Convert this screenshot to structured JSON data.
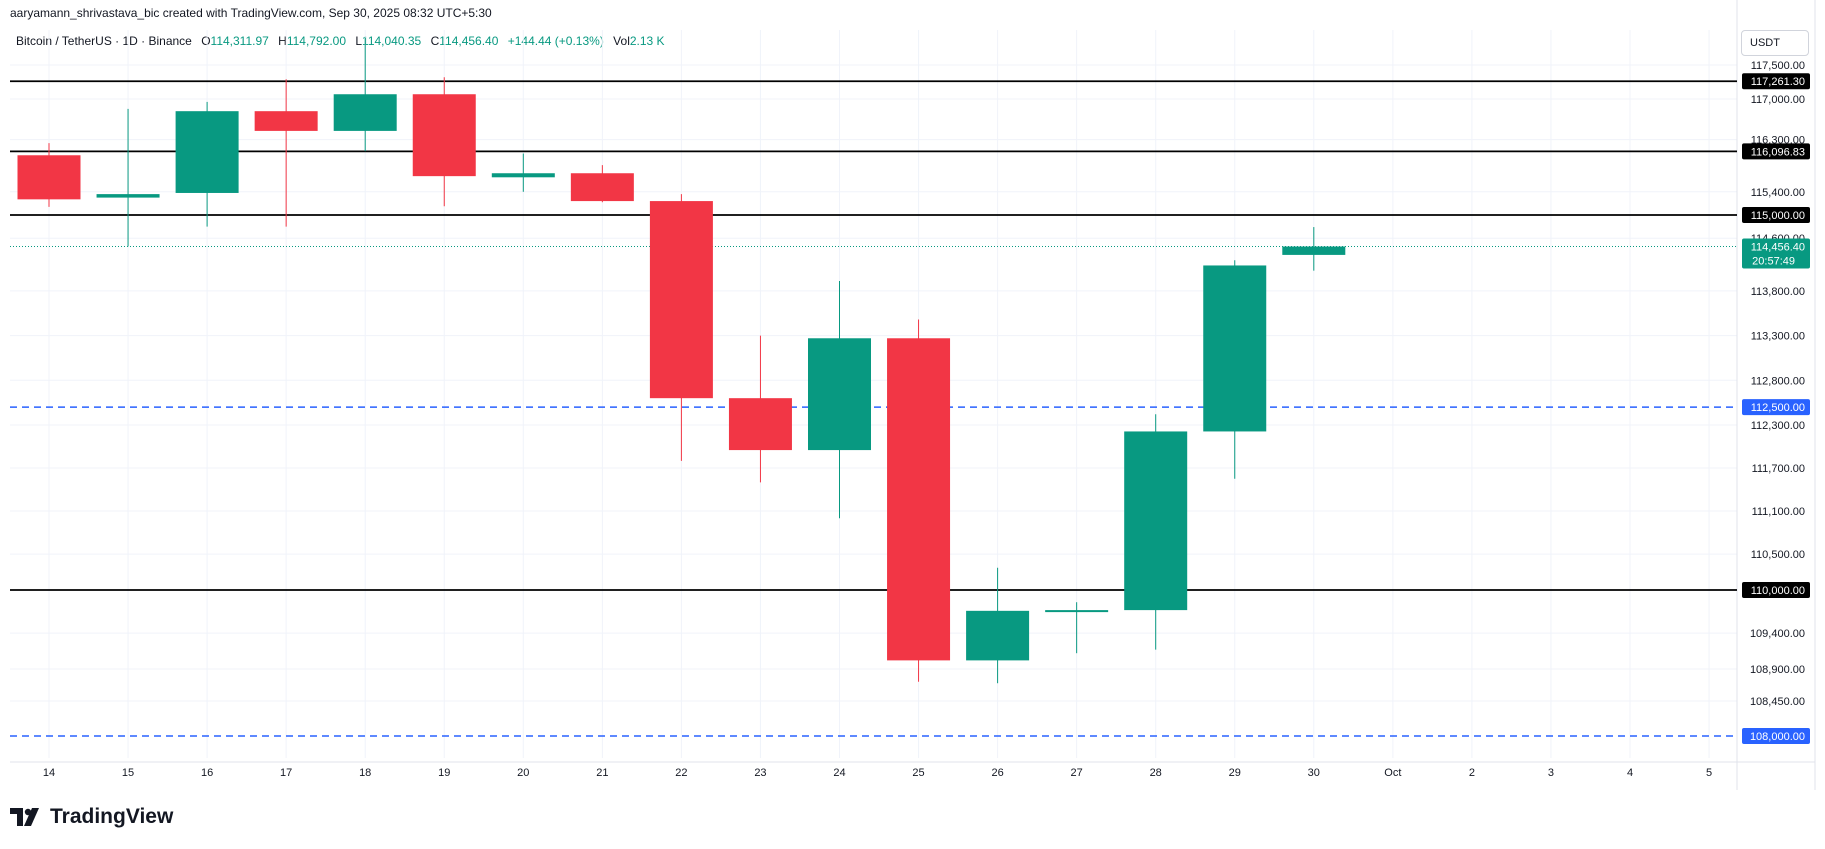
{
  "header": {
    "credit": "aaryamann_shrivastava_bic created with TradingView.com, Sep 30, 2025 08:32 UTC+5:30"
  },
  "legend": {
    "symbol": "Bitcoin / TetherUS · 1D · Binance",
    "open_label": "O",
    "open": "114,311.97",
    "high_label": "H",
    "high": "114,792.00",
    "low_label": "L",
    "low": "114,040.35",
    "close_label": "C",
    "close": "114,456.40",
    "change": "+144.44 (+0.13%)",
    "vol_label": "Vol",
    "vol": "2.13 K"
  },
  "price_axis": {
    "unit": "USDT"
  },
  "brand": {
    "name": "TradingView"
  },
  "colors": {
    "up": "#089981",
    "down": "#f23645",
    "level_line": "#000000",
    "dashed_line": "#2962ff",
    "grid": "#f0f3fa"
  },
  "chart_data": {
    "type": "candlestick",
    "y_scale": [
      {
        "value": 117500,
        "y": 65
      },
      {
        "value": 117000,
        "y": 99
      },
      {
        "value": 114000,
        "y": 273
      },
      {
        "value": 112300,
        "y": 425
      },
      {
        "value": 111700,
        "y": 468
      },
      {
        "value": 110000,
        "y": 590
      },
      {
        "value": 108900,
        "y": 669
      },
      {
        "value": 108450,
        "y": 701
      },
      {
        "value": 108000,
        "y": 736
      }
    ],
    "x_ticks": [
      "14",
      "15",
      "16",
      "17",
      "18",
      "19",
      "20",
      "21",
      "22",
      "23",
      "24",
      "25",
      "26",
      "27",
      "28",
      "29",
      "30",
      "Oct",
      "2",
      "3",
      "4",
      "5"
    ],
    "y_ticks": [
      {
        "value": 117500,
        "label": "117,500.00"
      },
      {
        "value": 117000,
        "label": "117,000.00"
      },
      {
        "value": 116300,
        "label": "116,300.00"
      },
      {
        "value": 115400,
        "label": "115,400.00"
      },
      {
        "value": 114600,
        "label": "114,600.00"
      },
      {
        "value": 113800,
        "label": "113,800.00"
      },
      {
        "value": 113300,
        "label": "113,300.00"
      },
      {
        "value": 112800,
        "label": "112,800.00"
      },
      {
        "value": 112300,
        "label": "112,300.00"
      },
      {
        "value": 111700,
        "label": "111,700.00"
      },
      {
        "value": 111100,
        "label": "111,100.00"
      },
      {
        "value": 110500,
        "label": "110,500.00"
      },
      {
        "value": 109400,
        "label": "109,400.00"
      },
      {
        "value": 108900,
        "label": "108,900.00"
      },
      {
        "value": 108450,
        "label": "108,450.00"
      }
    ],
    "candles": [
      {
        "date": "14",
        "open": 116030,
        "high": 116240,
        "low": 115140,
        "close": 115270
      },
      {
        "date": "15",
        "open": 115300,
        "high": 116830,
        "low": 114460,
        "close": 115360
      },
      {
        "date": "16",
        "open": 115380,
        "high": 116950,
        "low": 114800,
        "close": 116790
      },
      {
        "date": "17",
        "open": 116790,
        "high": 117290,
        "low": 114800,
        "close": 116450
      },
      {
        "date": "18",
        "open": 116450,
        "high": 117900,
        "low": 116100,
        "close": 117070
      },
      {
        "date": "19",
        "open": 117070,
        "high": 117320,
        "low": 115150,
        "close": 115670
      },
      {
        "date": "20",
        "open": 115650,
        "high": 116060,
        "low": 115400,
        "close": 115720
      },
      {
        "date": "21",
        "open": 115720,
        "high": 115860,
        "low": 115220,
        "close": 115240
      },
      {
        "date": "22",
        "open": 115240,
        "high": 115360,
        "low": 111800,
        "close": 112600
      },
      {
        "date": "23",
        "open": 112600,
        "high": 113300,
        "low": 111500,
        "close": 111950
      },
      {
        "date": "24",
        "open": 111950,
        "high": 113910,
        "low": 111000,
        "close": 113270
      },
      {
        "date": "25",
        "open": 113270,
        "high": 113480,
        "low": 108720,
        "close": 109020
      },
      {
        "date": "26",
        "open": 109020,
        "high": 110310,
        "low": 108700,
        "close": 109710
      },
      {
        "date": "27",
        "open": 109710,
        "high": 109830,
        "low": 109120,
        "close": 109720
      },
      {
        "date": "28",
        "open": 109720,
        "high": 112420,
        "low": 109170,
        "close": 112210
      },
      {
        "date": "29",
        "open": 112210,
        "high": 114220,
        "low": 111550,
        "close": 114130
      },
      {
        "date": "30",
        "open": 114311.97,
        "high": 114792,
        "low": 114040.35,
        "close": 114456.4
      }
    ],
    "levels": [
      {
        "value": 117261.3,
        "label": "117,261.30",
        "style": "solid"
      },
      {
        "value": 116096.83,
        "label": "116,096.83",
        "style": "solid"
      },
      {
        "value": 115000,
        "label": "115,000.00",
        "style": "solid"
      },
      {
        "value": 112500,
        "label": "112,500.00",
        "style": "dashed"
      },
      {
        "value": 110000,
        "label": "110,000.00",
        "style": "solid"
      },
      {
        "value": 108000,
        "label": "108,000.00",
        "style": "dashed"
      }
    ],
    "last_price": {
      "value": 114456.4,
      "label": "114,456.40",
      "countdown": "20:57:49"
    },
    "grid": true
  }
}
